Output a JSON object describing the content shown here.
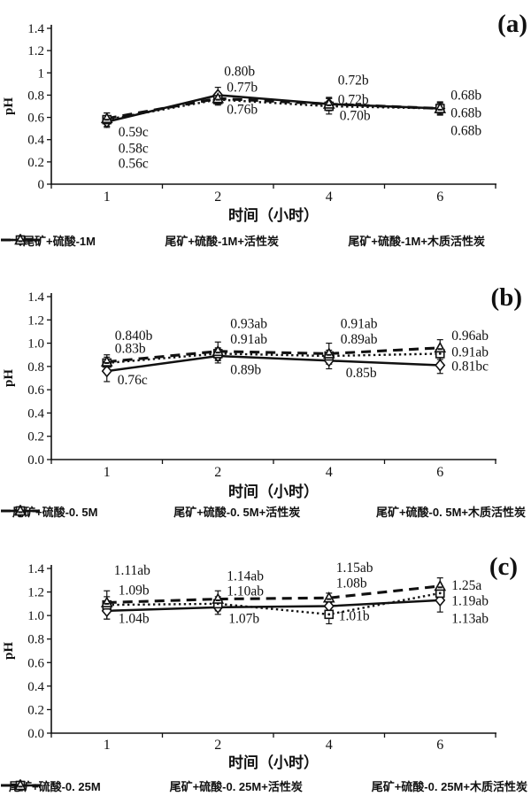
{
  "figure": {
    "background": "#ffffff",
    "ink_color": "#111111",
    "description_names": [
      "panel-a",
      "panel-b",
      "panel-c"
    ]
  },
  "chart_data": [
    {
      "type": "line",
      "panel_label": "(a)",
      "ylabel": "pH",
      "xlabel": "时间（小时）",
      "categories": [
        "1",
        "2",
        "4",
        "6"
      ],
      "y_tick_labels": [
        "0",
        "0.2",
        "0.4",
        "0.6",
        "0.8",
        "1",
        "1.2",
        "1.4"
      ],
      "ylim": [
        0,
        1.4
      ],
      "grid": "off",
      "legend_position": "bottom",
      "series": [
        {
          "name": "尾矿+硫酸-1M",
          "marker": "diamond",
          "line_style": "solid",
          "values": [
            0.56,
            0.8,
            0.72,
            0.68
          ],
          "err": [
            0.05,
            0.07,
            0.06,
            0.05
          ]
        },
        {
          "name": "尾矿+硫酸-1M+活性炭",
          "marker": "square",
          "line_style": "dotted",
          "values": [
            0.58,
            0.76,
            0.7,
            0.68
          ],
          "err": [
            0.06,
            0.05,
            0.07,
            0.06
          ]
        },
        {
          "name": "尾矿+硫酸-1M+木质活性炭",
          "marker": "triangle",
          "line_style": "dashed",
          "values": [
            0.59,
            0.77,
            0.72,
            0.68
          ],
          "err": [
            0.05,
            0.05,
            0.05,
            0.05
          ]
        }
      ],
      "annotations": [
        {
          "text": "0.80b",
          "cat": 1,
          "dx": 7,
          "ph": 1.02
        },
        {
          "text": "0.77b",
          "cat": 1,
          "dx": 10,
          "ph": 0.875
        },
        {
          "text": "0.76b",
          "cat": 1,
          "dx": 10,
          "ph": 0.675
        },
        {
          "text": "0.72b",
          "cat": 2,
          "dx": 10,
          "ph": 0.94
        },
        {
          "text": "0.72b",
          "cat": 2,
          "dx": 10,
          "ph": 0.764
        },
        {
          "text": "0.70b",
          "cat": 2,
          "dx": 12,
          "ph": 0.62
        },
        {
          "text": "0.68b",
          "cat": 3,
          "dx": 12,
          "ph": 0.803
        },
        {
          "text": "0.68b",
          "cat": 3,
          "dx": 12,
          "ph": 0.645
        },
        {
          "text": "0.68b",
          "cat": 3,
          "dx": 12,
          "ph": 0.485
        },
        {
          "text": "0.59c",
          "cat": 0,
          "dx": 13,
          "ph": 0.475
        },
        {
          "text": "0.58c",
          "cat": 0,
          "dx": 13,
          "ph": 0.325
        },
        {
          "text": "0.56c",
          "cat": 0,
          "dx": 13,
          "ph": 0.19
        }
      ]
    },
    {
      "type": "line",
      "panel_label": "(b)",
      "ylabel": "pH",
      "xlabel": "时间（小时）",
      "categories": [
        "1",
        "2",
        "4",
        "6"
      ],
      "y_tick_labels": [
        "0.0",
        "0.2",
        "0.4",
        "0.6",
        "0.8",
        "1.0",
        "1.2",
        "1.4"
      ],
      "ylim": [
        0,
        1.4
      ],
      "grid": "off",
      "legend_position": "bottom",
      "series": [
        {
          "name": "尾矿+硫酸-0. 5M",
          "marker": "diamond",
          "line_style": "solid",
          "values": [
            0.76,
            0.89,
            0.85,
            0.81
          ],
          "err": [
            0.09,
            0.06,
            0.07,
            0.07
          ]
        },
        {
          "name": "尾矿+硫酸-0. 5M+活性炭",
          "marker": "square",
          "line_style": "dotted",
          "values": [
            0.83,
            0.91,
            0.89,
            0.91
          ],
          "err": [
            0.05,
            0.05,
            0.05,
            0.05
          ]
        },
        {
          "name": "尾矿+硫酸-0. 5M+木质活性炭",
          "marker": "triangle",
          "line_style": "dashed",
          "values": [
            0.84,
            0.93,
            0.91,
            0.96
          ],
          "err": [
            0.06,
            0.08,
            0.09,
            0.07
          ]
        }
      ],
      "annotations": [
        {
          "text": "0.840b",
          "cat": 0,
          "dx": 9,
          "ph": 1.07
        },
        {
          "text": "0.83b",
          "cat": 0,
          "dx": 9,
          "ph": 0.96
        },
        {
          "text": "0.76c",
          "cat": 0,
          "dx": 12,
          "ph": 0.69
        },
        {
          "text": "0.93ab",
          "cat": 1,
          "dx": 14,
          "ph": 1.17
        },
        {
          "text": "0.91ab",
          "cat": 1,
          "dx": 14,
          "ph": 1.04
        },
        {
          "text": "0.89b",
          "cat": 1,
          "dx": 14,
          "ph": 0.775
        },
        {
          "text": "0.91ab",
          "cat": 2,
          "dx": 13,
          "ph": 1.17
        },
        {
          "text": "0.89ab",
          "cat": 2,
          "dx": 13,
          "ph": 1.04
        },
        {
          "text": "0.85b",
          "cat": 2,
          "dx": 19,
          "ph": 0.75
        },
        {
          "text": "0.96ab",
          "cat": 3,
          "dx": 13,
          "ph": 1.07
        },
        {
          "text": "0.91ab",
          "cat": 3,
          "dx": 13,
          "ph": 0.93
        },
        {
          "text": "0.81bc",
          "cat": 3,
          "dx": 13,
          "ph": 0.805
        }
      ]
    },
    {
      "type": "line",
      "panel_label": "(c)",
      "ylabel": "pH",
      "xlabel": "时间（小时）",
      "categories": [
        "1",
        "2",
        "4",
        "6"
      ],
      "y_tick_labels": [
        "0.0",
        "0.2",
        "0.4",
        "0.6",
        "0.8",
        "1.0",
        "1.2",
        "1.4"
      ],
      "ylim": [
        0,
        1.4
      ],
      "grid": "off",
      "legend_position": "bottom",
      "series": [
        {
          "name": "尾矿+硫酸-0. 25M",
          "marker": "diamond",
          "line_style": "solid",
          "values": [
            1.04,
            1.07,
            1.08,
            1.13
          ],
          "err": [
            0.07,
            0.06,
            0.05,
            0.1
          ]
        },
        {
          "name": "尾矿+硫酸-0. 25M+活性炭",
          "marker": "square",
          "line_style": "dotted",
          "values": [
            1.09,
            1.1,
            1.01,
            1.19
          ],
          "err": [
            0.12,
            0.06,
            0.08,
            0.06
          ]
        },
        {
          "name": "尾矿+硫酸-0. 25M+木质活性炭",
          "marker": "triangle",
          "line_style": "dashed",
          "values": [
            1.11,
            1.14,
            1.15,
            1.25
          ],
          "err": [
            0.05,
            0.07,
            0.04,
            0.07
          ]
        }
      ],
      "annotations": [
        {
          "text": "1.11ab",
          "cat": 0,
          "dx": 8,
          "ph": 1.39
        },
        {
          "text": "1.09b",
          "cat": 0,
          "dx": 13,
          "ph": 1.22
        },
        {
          "text": "1.04b",
          "cat": 0,
          "dx": 13,
          "ph": 0.98
        },
        {
          "text": "1.14ab",
          "cat": 1,
          "dx": 10,
          "ph": 1.34
        },
        {
          "text": "1.10ab",
          "cat": 1,
          "dx": 10,
          "ph": 1.21
        },
        {
          "text": "1.07b",
          "cat": 1,
          "dx": 12,
          "ph": 0.98
        },
        {
          "text": "1.15ab",
          "cat": 2,
          "dx": 8,
          "ph": 1.41
        },
        {
          "text": "1.08b",
          "cat": 2,
          "dx": 8,
          "ph": 1.28
        },
        {
          "text": "1.01b",
          "cat": 2,
          "dx": 11,
          "ph": 1.0
        },
        {
          "text": "1.25a",
          "cat": 3,
          "dx": 13,
          "ph": 1.26
        },
        {
          "text": "1.19ab",
          "cat": 3,
          "dx": 13,
          "ph": 1.13
        },
        {
          "text": "1.13ab",
          "cat": 3,
          "dx": 13,
          "ph": 0.98
        }
      ]
    }
  ]
}
